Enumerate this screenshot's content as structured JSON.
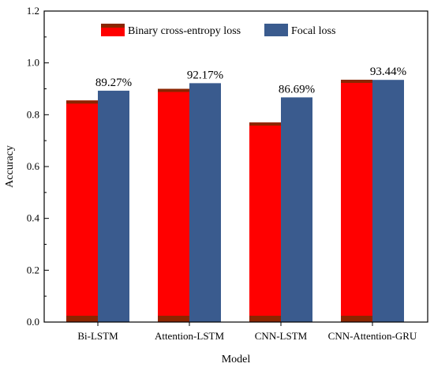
{
  "chart_data": {
    "type": "bar",
    "title": "",
    "xlabel": "Model",
    "ylabel": "Accuracy",
    "ylim": [
      0,
      1.2
    ],
    "yticks": [
      "0.0",
      "0.2",
      "0.4",
      "0.6",
      "0.8",
      "1.0",
      "1.2"
    ],
    "categories": [
      "Bi-LSTM",
      "Attention-LSTM",
      "CNN-LSTM",
      "CNN-Attention-GRU"
    ],
    "series": [
      {
        "name": "Binary cross-entropy loss",
        "color": "#ff0000",
        "values": [
          0.855,
          0.9,
          0.77,
          0.935
        ]
      },
      {
        "name": "Focal loss",
        "color": "#3a5b8e",
        "values": [
          0.8927,
          0.9217,
          0.8669,
          0.9344
        ],
        "data_labels": [
          "89.27%",
          "92.17%",
          "86.69%",
          "93.44%"
        ]
      }
    ],
    "legend": "top-center",
    "grid": false
  }
}
